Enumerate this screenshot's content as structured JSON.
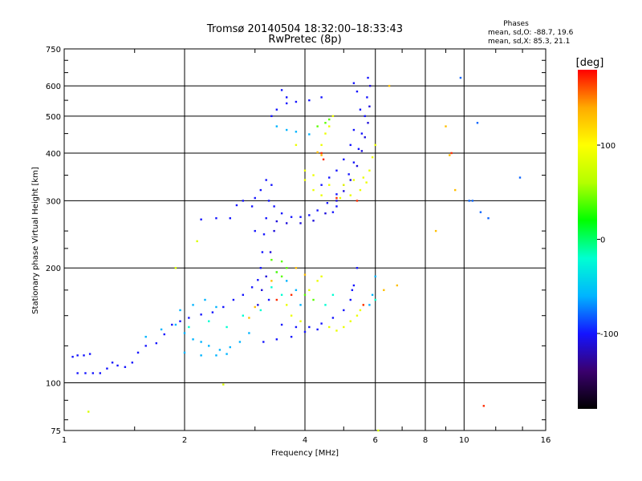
{
  "chart_data": {
    "type": "scatter",
    "title": "Tromsø 20140504 18:32:00–18:33:43",
    "subtitle": "RwPretec (8p)",
    "phase_box": {
      "heading": "Phases",
      "line_o": "mean, sd,O: -88.7, 19.6",
      "line_x": "mean, sd,X:  85.3, 21.1"
    },
    "xlabel": "Frequency [MHz]",
    "ylabel": "Stationary phase Virtual Height [km]",
    "x_scale": "log",
    "y_scale": "log",
    "xlim": [
      1,
      16
    ],
    "ylim": [
      75,
      750
    ],
    "x_ticks": [
      "1",
      "2",
      "4",
      "6",
      "8",
      "10",
      "16"
    ],
    "x_tick_values": [
      1,
      2,
      4,
      6,
      8,
      10,
      16
    ],
    "x_grid": [
      2,
      4,
      6,
      8,
      10
    ],
    "y_ticks": [
      "750",
      "600",
      "500",
      "400",
      "300",
      "200",
      "100",
      "75"
    ],
    "y_tick_values": [
      750,
      600,
      500,
      400,
      300,
      200,
      100,
      75
    ],
    "y_grid": [
      600,
      500,
      400,
      300,
      200,
      100
    ],
    "grid": true,
    "colorbar": {
      "label": "[deg]",
      "range": [
        -180,
        180
      ],
      "ticks": [
        "100",
        "0",
        "-100"
      ],
      "tick_values": [
        100,
        0,
        -100
      ],
      "colors": [
        "#000000",
        "#3a006e",
        "#1414ff",
        "#00b4ff",
        "#00ffd2",
        "#00ff00",
        "#b4ff00",
        "#ffff00",
        "#ffaa00",
        "#ff0000"
      ]
    },
    "series": [
      {
        "phase": -100,
        "points": [
          [
            1.05,
            117
          ],
          [
            1.08,
            118
          ],
          [
            1.12,
            118
          ],
          [
            1.16,
            119
          ],
          [
            1.08,
            106
          ],
          [
            1.13,
            106
          ],
          [
            1.18,
            106
          ],
          [
            1.23,
            106
          ],
          [
            1.28,
            109
          ],
          [
            1.32,
            113
          ],
          [
            1.36,
            111
          ],
          [
            1.42,
            110
          ],
          [
            1.48,
            113
          ],
          [
            1.53,
            120
          ],
          [
            1.6,
            125
          ],
          [
            1.7,
            127
          ],
          [
            1.78,
            134
          ],
          [
            1.86,
            142
          ],
          [
            1.95,
            145
          ],
          [
            2.05,
            148
          ],
          [
            2.2,
            151
          ],
          [
            2.35,
            153
          ],
          [
            2.5,
            158
          ],
          [
            2.65,
            165
          ],
          [
            2.8,
            170
          ],
          [
            2.95,
            178
          ],
          [
            3.05,
            186
          ],
          [
            3.1,
            200
          ],
          [
            3.13,
            220
          ],
          [
            3.16,
            245
          ],
          [
            3.2,
            270
          ],
          [
            3.0,
            250
          ],
          [
            2.95,
            290
          ],
          [
            3.0,
            305
          ],
          [
            3.1,
            320
          ],
          [
            3.2,
            340
          ],
          [
            3.3,
            330
          ],
          [
            3.25,
            300
          ],
          [
            3.35,
            290
          ],
          [
            3.5,
            278
          ],
          [
            3.7,
            272
          ],
          [
            3.9,
            272
          ],
          [
            4.1,
            275
          ],
          [
            4.3,
            283
          ],
          [
            4.55,
            296
          ],
          [
            4.8,
            312
          ],
          [
            5.0,
            330
          ],
          [
            5.15,
            352
          ],
          [
            5.3,
            378
          ],
          [
            5.45,
            410
          ],
          [
            5.55,
            450
          ],
          [
            5.65,
            500
          ],
          [
            5.72,
            560
          ],
          [
            5.75,
            630
          ],
          [
            5.3,
            610
          ],
          [
            5.4,
            580
          ],
          [
            5.5,
            520
          ],
          [
            5.3,
            460
          ],
          [
            5.2,
            420
          ],
          [
            5.0,
            385
          ],
          [
            4.8,
            360
          ],
          [
            4.6,
            345
          ],
          [
            4.4,
            330
          ],
          [
            3.25,
            165
          ],
          [
            3.5,
            142
          ],
          [
            3.8,
            140
          ],
          [
            4.1,
            140
          ],
          [
            4.4,
            143
          ],
          [
            4.7,
            148
          ],
          [
            5.0,
            155
          ],
          [
            5.2,
            165
          ],
          [
            5.3,
            180
          ],
          [
            5.4,
            200
          ],
          [
            5.25,
            175
          ],
          [
            3.15,
            128
          ],
          [
            3.4,
            130
          ],
          [
            3.7,
            132
          ],
          [
            4.0,
            136
          ],
          [
            4.3,
            138
          ],
          [
            3.3,
            500
          ],
          [
            3.4,
            520
          ],
          [
            3.6,
            540
          ],
          [
            3.8,
            545
          ],
          [
            4.1,
            550
          ],
          [
            4.4,
            560
          ],
          [
            3.5,
            585
          ],
          [
            3.6,
            560
          ],
          [
            2.8,
            300
          ],
          [
            2.7,
            292
          ],
          [
            2.6,
            270
          ],
          [
            2.4,
            270
          ],
          [
            2.2,
            268
          ],
          [
            4.7,
            280
          ],
          [
            4.8,
            290
          ]
        ]
      },
      {
        "phase": -110,
        "points": [
          [
            3.05,
            160
          ],
          [
            3.12,
            175
          ],
          [
            3.2,
            190
          ],
          [
            3.28,
            220
          ],
          [
            3.35,
            250
          ],
          [
            3.4,
            265
          ],
          [
            3.6,
            262
          ],
          [
            3.9,
            262
          ],
          [
            4.2,
            266
          ],
          [
            4.5,
            278
          ],
          [
            4.8,
            300
          ],
          [
            5.0,
            318
          ],
          [
            5.2,
            340
          ],
          [
            5.4,
            370
          ],
          [
            5.55,
            405
          ],
          [
            5.65,
            440
          ],
          [
            5.75,
            480
          ],
          [
            5.8,
            530
          ],
          [
            5.82,
            600
          ]
        ]
      },
      {
        "phase": -60,
        "points": [
          [
            1.6,
            132
          ],
          [
            1.75,
            138
          ],
          [
            1.9,
            142
          ],
          [
            2.0,
            135
          ],
          [
            2.1,
            130
          ],
          [
            2.2,
            128
          ],
          [
            2.3,
            125
          ],
          [
            2.45,
            122
          ],
          [
            2.6,
            124
          ],
          [
            2.75,
            128
          ],
          [
            2.9,
            135
          ],
          [
            2.0,
            120
          ],
          [
            2.2,
            118
          ],
          [
            2.4,
            118
          ],
          [
            2.55,
            119
          ],
          [
            1.95,
            155
          ],
          [
            2.1,
            160
          ],
          [
            2.25,
            165
          ],
          [
            2.4,
            158
          ],
          [
            3.4,
            470
          ],
          [
            3.6,
            460
          ],
          [
            3.8,
            455
          ],
          [
            4.1,
            448
          ],
          [
            3.4,
            195
          ],
          [
            3.6,
            185
          ],
          [
            3.8,
            175
          ],
          [
            3.9,
            160
          ],
          [
            5.8,
            160
          ],
          [
            5.9,
            170
          ],
          [
            6.0,
            190
          ]
        ]
      },
      {
        "phase": -20,
        "points": [
          [
            2.05,
            140
          ],
          [
            2.3,
            145
          ],
          [
            2.55,
            140
          ],
          [
            2.8,
            150
          ],
          [
            3.1,
            155
          ],
          [
            3.3,
            178
          ],
          [
            3.5,
            170
          ],
          [
            4.5,
            160
          ],
          [
            4.7,
            170
          ],
          [
            6.0,
            165
          ]
        ]
      },
      {
        "phase": 40,
        "points": [
          [
            3.4,
            195
          ],
          [
            3.5,
            190
          ],
          [
            3.6,
            200
          ],
          [
            3.3,
            210
          ],
          [
            3.5,
            208
          ],
          [
            4.3,
            470
          ],
          [
            4.5,
            480
          ],
          [
            4.6,
            490
          ],
          [
            4.0,
            170
          ],
          [
            4.2,
            165
          ]
        ]
      },
      {
        "phase": 90,
        "points": [
          [
            3.6,
            160
          ],
          [
            3.7,
            150
          ],
          [
            3.9,
            145
          ],
          [
            4.1,
            175
          ],
          [
            4.3,
            185
          ],
          [
            4.4,
            190
          ],
          [
            4.6,
            140
          ],
          [
            4.8,
            137
          ],
          [
            5.0,
            140
          ],
          [
            5.2,
            145
          ],
          [
            5.4,
            150
          ],
          [
            5.5,
            155
          ],
          [
            5.6,
            160
          ],
          [
            4.0,
            340
          ],
          [
            4.2,
            320
          ],
          [
            4.4,
            310
          ],
          [
            4.9,
            305
          ],
          [
            5.2,
            310
          ],
          [
            5.5,
            320
          ],
          [
            5.7,
            335
          ],
          [
            5.8,
            360
          ],
          [
            5.9,
            390
          ],
          [
            6.0,
            420
          ],
          [
            4.0,
            360
          ],
          [
            4.2,
            350
          ],
          [
            4.6,
            330
          ],
          [
            5.0,
            330
          ],
          [
            5.3,
            340
          ],
          [
            5.6,
            345
          ],
          [
            4.5,
            450
          ],
          [
            4.6,
            470
          ],
          [
            4.7,
            500
          ],
          [
            4.4,
            420
          ],
          [
            3.8,
            420
          ]
        ]
      },
      {
        "phase": 130,
        "points": [
          [
            2.9,
            148
          ],
          [
            3.0,
            158
          ],
          [
            3.3,
            185
          ],
          [
            4.3,
            402
          ],
          [
            4.4,
            395
          ],
          [
            3.8,
            200
          ],
          [
            4.0,
            192
          ],
          [
            6.3,
            175
          ],
          [
            6.8,
            180
          ],
          [
            6.5,
            600
          ],
          [
            8.5,
            250
          ],
          [
            9.0,
            470
          ],
          [
            9.2,
            395
          ],
          [
            9.5,
            320
          ]
        ]
      },
      {
        "phase": 170,
        "points": [
          [
            3.4,
            165
          ],
          [
            3.7,
            170
          ],
          [
            4.4,
            400
          ],
          [
            4.45,
            385
          ],
          [
            5.4,
            300
          ],
          [
            4.8,
            305
          ],
          [
            9.3,
            400
          ],
          [
            11.2,
            87
          ],
          [
            5.6,
            160
          ]
        ]
      },
      {
        "phase": -80,
        "points": [
          [
            9.8,
            630
          ],
          [
            10.8,
            480
          ],
          [
            10.5,
            300
          ],
          [
            11.0,
            280
          ],
          [
            11.5,
            270
          ],
          [
            13.8,
            345
          ],
          [
            10.3,
            300
          ]
        ]
      },
      {
        "phase": 80,
        "points": [
          [
            1.15,
            84
          ],
          [
            2.5,
            99
          ],
          [
            2.15,
            235
          ],
          [
            1.9,
            200
          ],
          [
            6.1,
            75
          ]
        ]
      }
    ]
  }
}
